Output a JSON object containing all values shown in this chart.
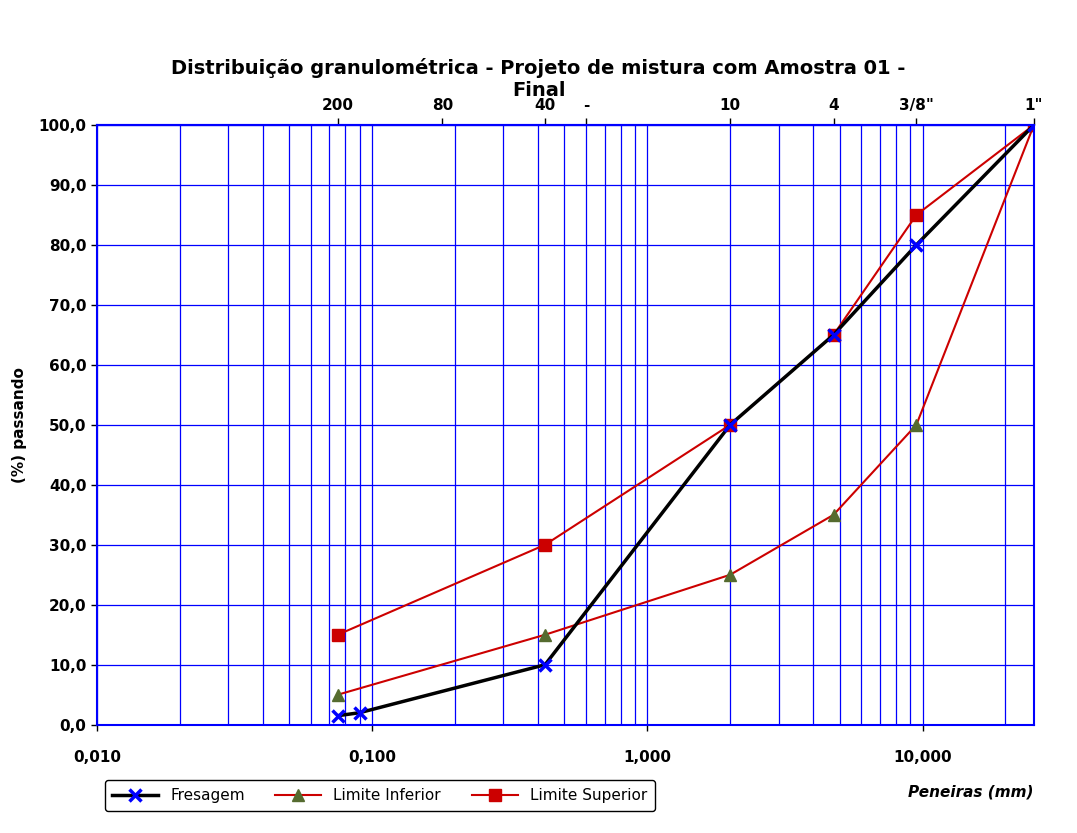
{
  "title": "Distribuição granulométrica - Projeto de mistura com Amostra 01 -\nFinal",
  "ylabel": "(%) passando",
  "xlabel_legend": "Peneiras (mm)",
  "ylim": [
    0.0,
    100.0
  ],
  "xlim": [
    0.01,
    25.4
  ],
  "yticks": [
    0.0,
    10.0,
    20.0,
    30.0,
    40.0,
    50.0,
    60.0,
    70.0,
    80.0,
    90.0,
    100.0
  ],
  "xticks_bottom": [
    0.01,
    0.1,
    1.0,
    10.0
  ],
  "xtick_labels_bottom": [
    "0,010",
    "0,100",
    "1,000",
    "10,000"
  ],
  "top_tick_positions": [
    0.075,
    0.18,
    0.425,
    0.6,
    2.0,
    4.75,
    9.5,
    25.4
  ],
  "top_tick_labels": [
    "200",
    "80",
    "40",
    "-",
    "10",
    "4",
    "3/8\"",
    "1\""
  ],
  "fresagem_x": [
    0.075,
    0.09,
    0.425,
    2.0,
    4.75,
    9.5,
    25.4
  ],
  "fresagem_y": [
    1.5,
    2.0,
    10.0,
    50.0,
    65.0,
    80.0,
    100.0
  ],
  "limite_inferior_x": [
    0.075,
    0.425,
    2.0,
    4.75,
    9.5,
    25.4
  ],
  "limite_inferior_y": [
    5.0,
    15.0,
    25.0,
    35.0,
    50.0,
    100.0
  ],
  "limite_superior_x": [
    0.075,
    0.425,
    2.0,
    4.75,
    9.5,
    25.4
  ],
  "limite_superior_y": [
    15.0,
    30.0,
    50.0,
    65.0,
    85.0,
    100.0
  ],
  "fresagem_color": "#000000",
  "fresagem_marker_color": "#0000FF",
  "limite_inferior_color": "#CC0000",
  "limite_inferior_marker_color": "#556B2F",
  "limite_superior_color": "#CC0000",
  "limite_superior_marker_color": "#CC0000",
  "grid_color": "#0000FF",
  "background_color": "#FFFFFF",
  "title_fontsize": 14,
  "axis_label_fontsize": 11,
  "tick_fontsize": 11,
  "legend_fontsize": 11
}
